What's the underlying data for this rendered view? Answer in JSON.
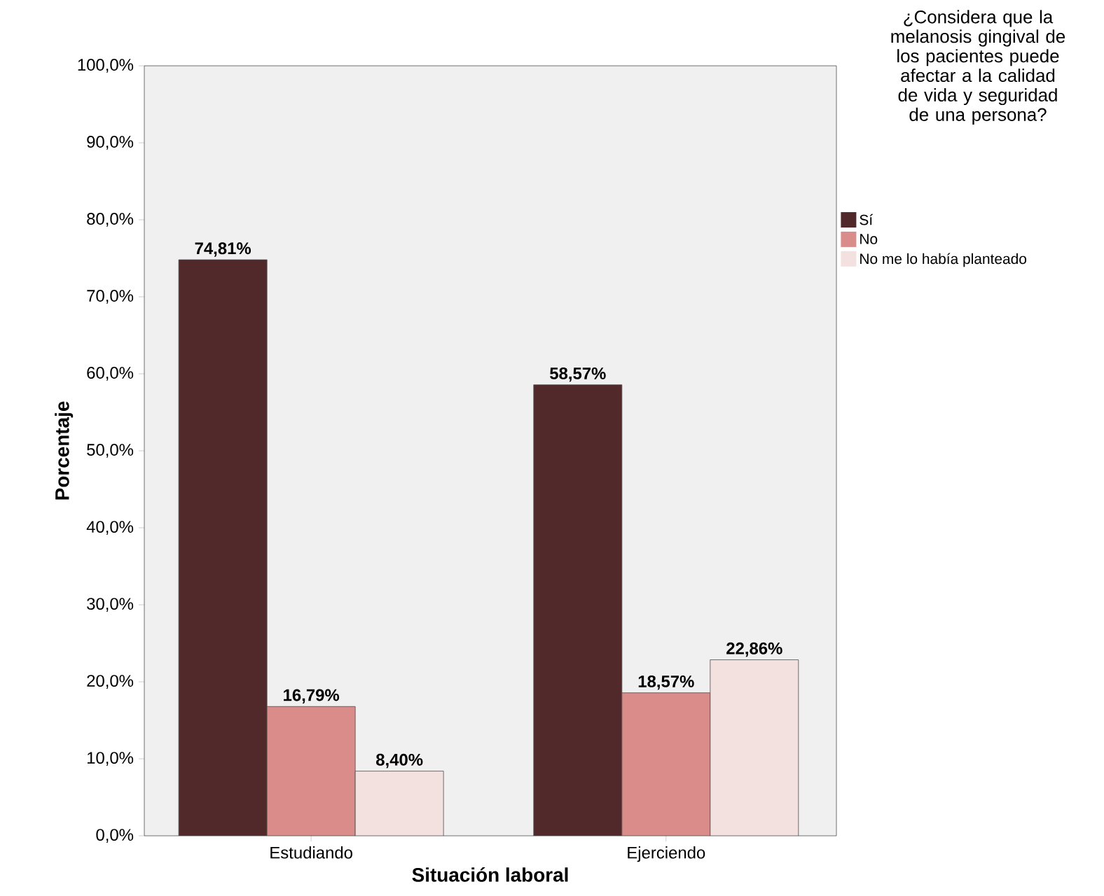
{
  "chart_data": {
    "type": "bar",
    "xlabel": "Situación laboral",
    "ylabel": "Porcentaje",
    "legend_title": "¿Considera que la melanosis gingival de los pacientes puede afectar a la calidad de vida y seguridad de una persona?",
    "categories": [
      "Estudiando",
      "Ejerciendo"
    ],
    "series": [
      {
        "name": "Sí",
        "color": "#52292a",
        "values": [
          74.81,
          58.57
        ],
        "value_labels": [
          "74,81%",
          "58,57%"
        ]
      },
      {
        "name": "No",
        "color": "#d98c8a",
        "values": [
          16.79,
          18.57
        ],
        "value_labels": [
          "16,79%",
          "18,57%"
        ]
      },
      {
        "name": "No me lo había planteado",
        "color": "#f3e1e0",
        "values": [
          8.4,
          22.86
        ],
        "value_labels": [
          "8,40%",
          "22,86%"
        ]
      }
    ],
    "ylim": [
      0,
      100
    ],
    "yticks": [
      {
        "value": 0,
        "label": "0,0%"
      },
      {
        "value": 10,
        "label": "10,0%"
      },
      {
        "value": 20,
        "label": "20,0%"
      },
      {
        "value": 30,
        "label": "30,0%"
      },
      {
        "value": 40,
        "label": "40,0%"
      },
      {
        "value": 50,
        "label": "50,0%"
      },
      {
        "value": 60,
        "label": "60,0%"
      },
      {
        "value": 70,
        "label": "70,0%"
      },
      {
        "value": 80,
        "label": "80,0%"
      },
      {
        "value": 90,
        "label": "90,0%"
      },
      {
        "value": 100,
        "label": "100,0%"
      }
    ],
    "legend": "right",
    "grid": false
  }
}
